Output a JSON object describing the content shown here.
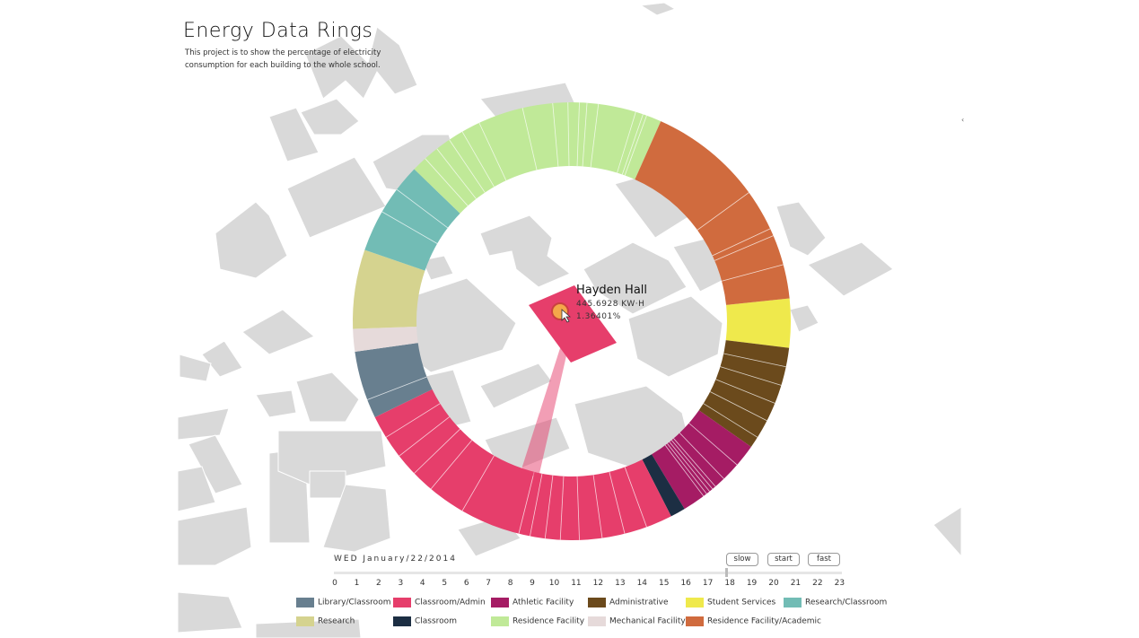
{
  "title": "Energy Data Rings",
  "subtitle": "This project is to show the percentage of electricity consumption for each building to the whole school.",
  "tooltip": {
    "building": "Hayden Hall",
    "kwh": "445.6928  KW·H",
    "percent": "1.36401%"
  },
  "date_label": "WED  January/22/2014",
  "controls": {
    "slow": "slow",
    "start": "start",
    "fast": "fast"
  },
  "timeline": {
    "hours": [
      "0",
      "1",
      "2",
      "3",
      "4",
      "5",
      "6",
      "7",
      "8",
      "9",
      "10",
      "11",
      "12",
      "13",
      "14",
      "15",
      "16",
      "17",
      "18",
      "19",
      "20",
      "21",
      "22",
      "23"
    ],
    "current_hour": 18
  },
  "legend": [
    {
      "label": "Library/Classroom",
      "color": "#687f8f"
    },
    {
      "label": "Classroom/Admin",
      "color": "#e63e6b"
    },
    {
      "label": "Athletic Facility",
      "color": "#a51c64"
    },
    {
      "label": "Administrative",
      "color": "#6b4a1c"
    },
    {
      "label": "Student Services",
      "color": "#efe94c"
    },
    {
      "label": "Research/Classroom",
      "color": "#72bcb5"
    },
    {
      "label": "Research",
      "color": "#d5d38f"
    },
    {
      "label": "Classroom",
      "color": "#1c2e43"
    },
    {
      "label": "Residence Facility",
      "color": "#c0e998"
    },
    {
      "label": "Mechanical Facility",
      "color": "#e6dada"
    },
    {
      "label": "Residence Facility/Academic",
      "color": "#d06b3e"
    }
  ],
  "ring": [
    {
      "category": "Student Services",
      "start": 84,
      "end": 97,
      "divs": []
    },
    {
      "category": "Administrative",
      "start": 97,
      "end": 125,
      "divs": [
        102,
        107,
        112,
        117,
        122
      ]
    },
    {
      "category": "Athletic Facility",
      "start": 125,
      "end": 149,
      "divs": [
        131,
        136,
        139,
        140,
        141,
        142,
        143
      ]
    },
    {
      "category": "Classroom",
      "start": 149,
      "end": 153,
      "divs": []
    },
    {
      "category": "Classroom/Admin",
      "start": 153,
      "end": 244,
      "divs": [
        160,
        166,
        172,
        178,
        183,
        187,
        191,
        194,
        210,
        220,
        226,
        232,
        238
      ]
    },
    {
      "category": "Library/Classroom",
      "start": 244,
      "end": 262,
      "divs": [
        249
      ]
    },
    {
      "category": "Mechanical Facility",
      "start": 262,
      "end": 268,
      "divs": []
    },
    {
      "category": "Research",
      "start": 268,
      "end": 289,
      "divs": []
    },
    {
      "category": "Research/Classroom",
      "start": 289,
      "end": 314,
      "divs": [
        300,
        307
      ]
    },
    {
      "category": "Residence Facility",
      "start": 314,
      "end": 384,
      "divs": [
        318,
        322,
        326,
        330,
        335,
        347,
        355,
        359,
        362,
        364,
        367,
        377,
        379,
        380
      ]
    },
    {
      "category": "Residence Facility/Academic",
      "start": 384,
      "end": 444,
      "divs": [
        414,
        425,
        427,
        435
      ]
    }
  ]
}
